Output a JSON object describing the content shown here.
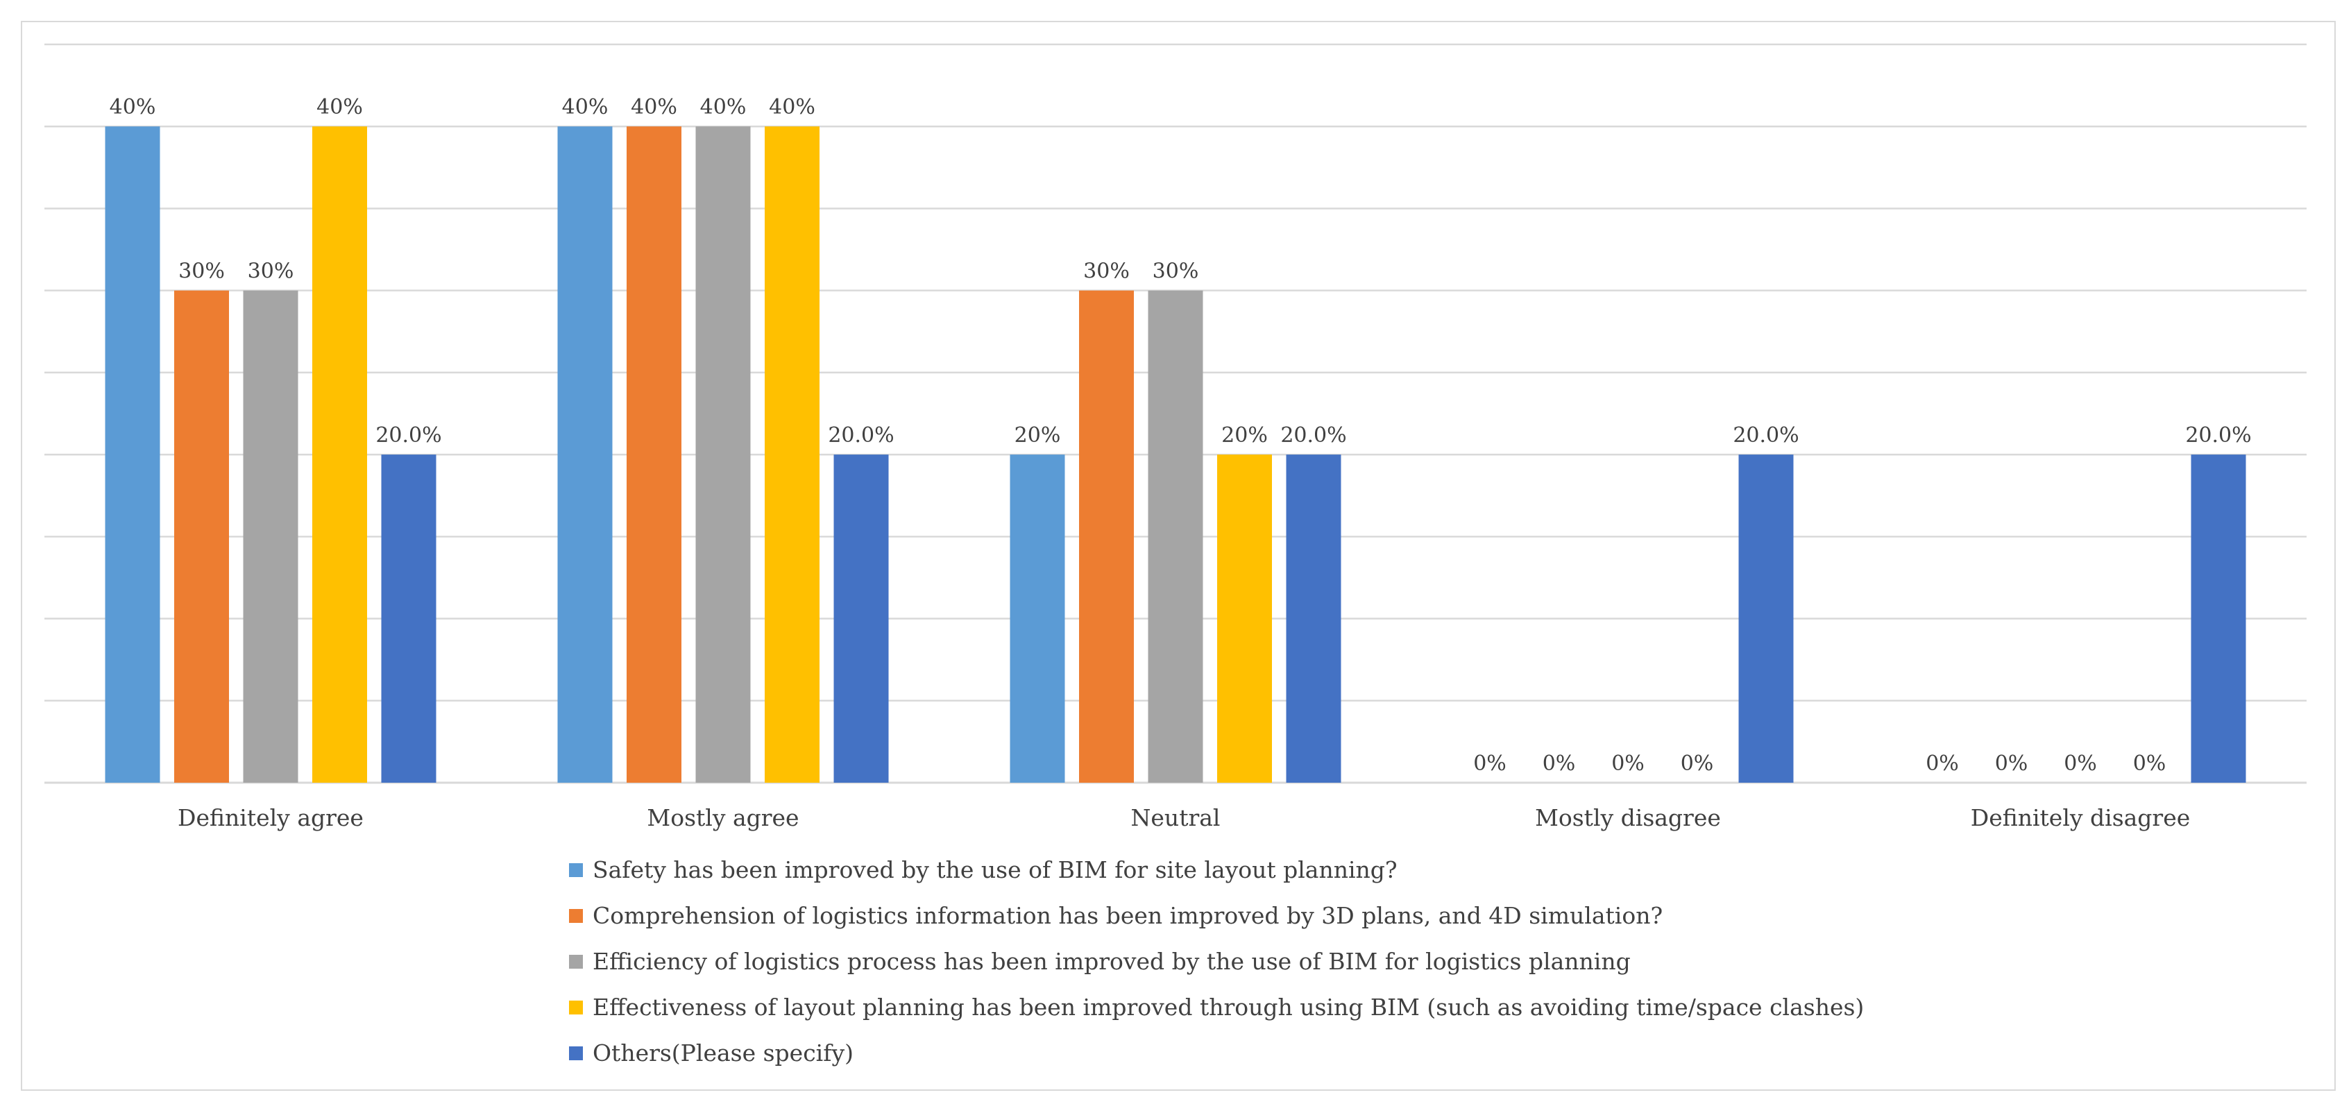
{
  "chart_data": {
    "type": "bar",
    "title": "",
    "xlabel": "",
    "ylabel": "",
    "ylim": [
      0,
      45
    ],
    "grid": true,
    "legend_position": "bottom",
    "categories": [
      "Definitely agree",
      "Mostly agree",
      "Neutral",
      "Mostly disagree",
      "Definitely disagree"
    ],
    "series": [
      {
        "name": "Safety has been improved by the use of BIM for site layout planning?",
        "color": "#5b9bd5",
        "values": [
          40,
          40,
          20,
          0,
          0
        ],
        "labels": [
          "40%",
          "40%",
          "20%",
          "0%",
          "0%"
        ]
      },
      {
        "name": "Comprehension of logistics information has been improved by 3D plans, and 4D simulation?",
        "color": "#ed7d31",
        "values": [
          30,
          40,
          30,
          0,
          0
        ],
        "labels": [
          "30%",
          "40%",
          "30%",
          "0%",
          "0%"
        ]
      },
      {
        "name": "Efficiency of logistics process has been improved by the use of BIM for logistics planning",
        "color": "#a5a5a5",
        "values": [
          30,
          40,
          30,
          0,
          0
        ],
        "labels": [
          "30%",
          "40%",
          "30%",
          "0%",
          "0%"
        ]
      },
      {
        "name": "Effectiveness of layout planning has been improved through using BIM (such as avoiding time/space clashes)",
        "color": "#ffc000",
        "values": [
          40,
          40,
          20,
          0,
          0
        ],
        "labels": [
          "40%",
          "40%",
          "20%",
          "0%",
          "0%"
        ]
      },
      {
        "name": "Others(Please specify)",
        "color": "#4472c4",
        "values": [
          20,
          20,
          20,
          20,
          20
        ],
        "labels": [
          "20.0%",
          "20.0%",
          "20.0%",
          "20.0%",
          "20.0%"
        ]
      }
    ]
  }
}
